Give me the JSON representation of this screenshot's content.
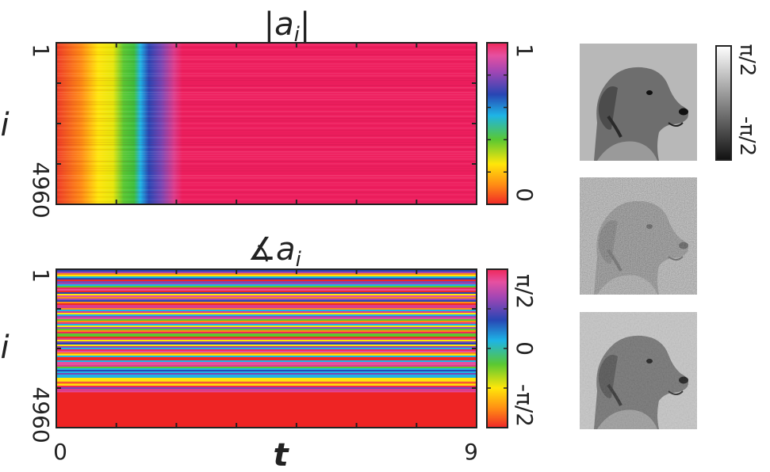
{
  "chart_data": [
    {
      "type": "heatmap",
      "title_parts": [
        "|",
        "a",
        "i",
        "|"
      ],
      "ylabel": "i",
      "xlabel": "",
      "y_ticks": [
        "1",
        "4960"
      ],
      "colorbar_ticks": [
        "1",
        "0"
      ],
      "colorbar_range": [
        0,
        1
      ],
      "x_range": [
        0,
        9
      ],
      "y_range": [
        1,
        4960
      ],
      "description_of_values": "amplitude rises from 0 at t=0 to ~1 by t~2.3 and stays at 1"
    },
    {
      "type": "heatmap",
      "title_parts": [
        "∡",
        "a",
        "i"
      ],
      "ylabel": "i",
      "xlabel": "t",
      "x_ticks": [
        "0",
        "9"
      ],
      "y_ticks": [
        "1",
        "4960"
      ],
      "colorbar_ticks": [
        "π/2",
        "0",
        "-π/2"
      ],
      "colorbar_range": [
        "-π/2",
        "π/2"
      ],
      "x_range": [
        0,
        9
      ],
      "y_range": [
        1,
        4960
      ]
    }
  ],
  "gray_colorbar": {
    "ticks": [
      "π/2",
      "-π/2"
    ]
  },
  "photos": [
    {
      "name": "dog-photo-clean"
    },
    {
      "name": "dog-photo-noisy"
    },
    {
      "name": "dog-photo-recovered"
    }
  ],
  "colors": {
    "magnitude_final": "#ee1e5e",
    "phase_bottom": "#ee2424",
    "axis": "#222222"
  }
}
